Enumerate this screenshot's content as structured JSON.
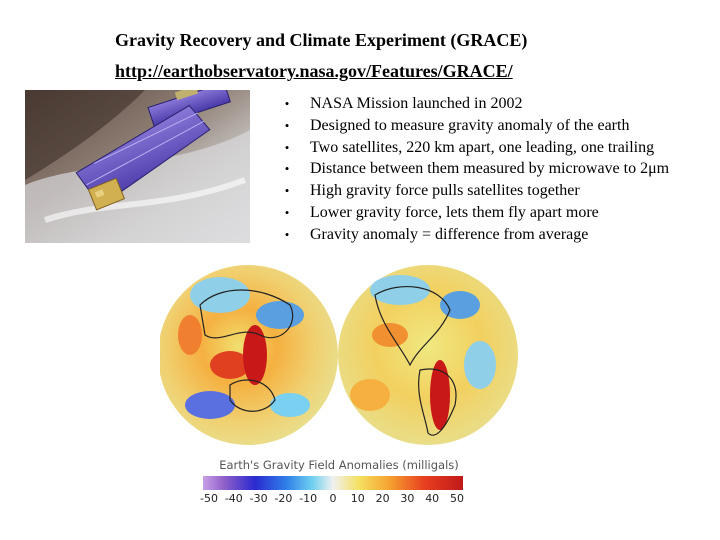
{
  "header": {
    "title": "Gravity Recovery and Climate Experiment (GRACE)",
    "link": "http://earthobservatory.nasa.gov/Features/GRACE/"
  },
  "bullets": [
    "NASA Mission launched in 2002",
    "Designed to measure gravity anomaly of the earth",
    "Two satellites, 220 km apart, one leading, one trailing",
    "Distance between them measured by microwave to 2μm",
    "High gravity force pulls satellites together",
    "Lower gravity force, lets them fly apart more",
    "Gravity anomaly = difference from average"
  ],
  "bullet_glyph": "•",
  "figure": {
    "caption": "Earth's Gravity Field Anomalies (milligals)",
    "scale_ticks": [
      "-50",
      "-40",
      "-30",
      "-20",
      "-10",
      "0",
      "10",
      "20",
      "30",
      "40",
      "50"
    ]
  }
}
